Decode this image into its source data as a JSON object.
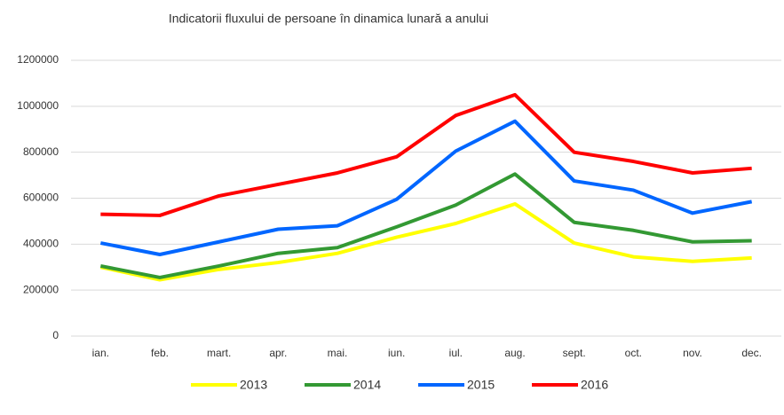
{
  "chart_data": {
    "type": "line",
    "title": "Indicatorii fluxului de persoane în dinamica lunară a anului",
    "categories": [
      "ian.",
      "feb.",
      "mart.",
      "apr.",
      "mai.",
      "iun.",
      "iul.",
      "aug.",
      "sept.",
      "oct.",
      "nov.",
      "dec."
    ],
    "series": [
      {
        "name": "2013",
        "color": "#ffff00",
        "values": [
          300000,
          245000,
          290000,
          320000,
          360000,
          430000,
          490000,
          575000,
          405000,
          345000,
          325000,
          340000
        ]
      },
      {
        "name": "2014",
        "color": "#339933",
        "values": [
          305000,
          255000,
          305000,
          360000,
          385000,
          475000,
          570000,
          705000,
          495000,
          460000,
          410000,
          415000
        ]
      },
      {
        "name": "2015",
        "color": "#0066ff",
        "values": [
          405000,
          355000,
          410000,
          465000,
          480000,
          595000,
          805000,
          935000,
          675000,
          635000,
          535000,
          585000
        ]
      },
      {
        "name": "2016",
        "color": "#ff0000",
        "values": [
          530000,
          525000,
          610000,
          660000,
          710000,
          780000,
          960000,
          1050000,
          800000,
          760000,
          710000,
          730000
        ]
      }
    ],
    "ylim": [
      0,
      1200000
    ],
    "yticks": [
      0,
      200000,
      400000,
      600000,
      800000,
      1000000,
      1200000
    ],
    "grid": true,
    "legend": "bottom"
  }
}
